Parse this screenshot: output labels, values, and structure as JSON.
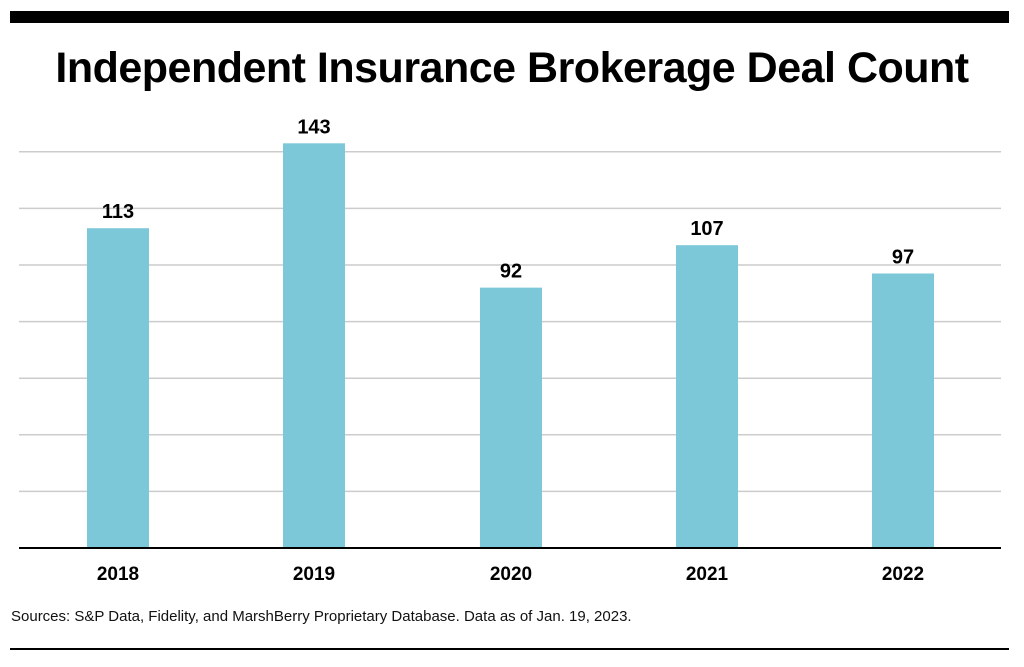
{
  "page": {
    "title": "Independent Insurance Brokerage Deal Count",
    "source": "Sources: S&P Data, Fidelity, and MarshBerry Proprietary Database. Data as of Jan. 19, 2023."
  },
  "colors": {
    "bar": "#7cc8d8",
    "grid": "#cccccc",
    "axis": "#000000",
    "text": "#000000"
  },
  "chart_data": {
    "type": "bar",
    "title": "Independent Insurance Brokerage Deal Count",
    "xlabel": "",
    "ylabel": "",
    "categories": [
      "2018",
      "2019",
      "2020",
      "2021",
      "2022"
    ],
    "values": [
      113,
      143,
      92,
      107,
      97
    ],
    "ylim": [
      0,
      175
    ],
    "grid": true,
    "legend": "none"
  }
}
